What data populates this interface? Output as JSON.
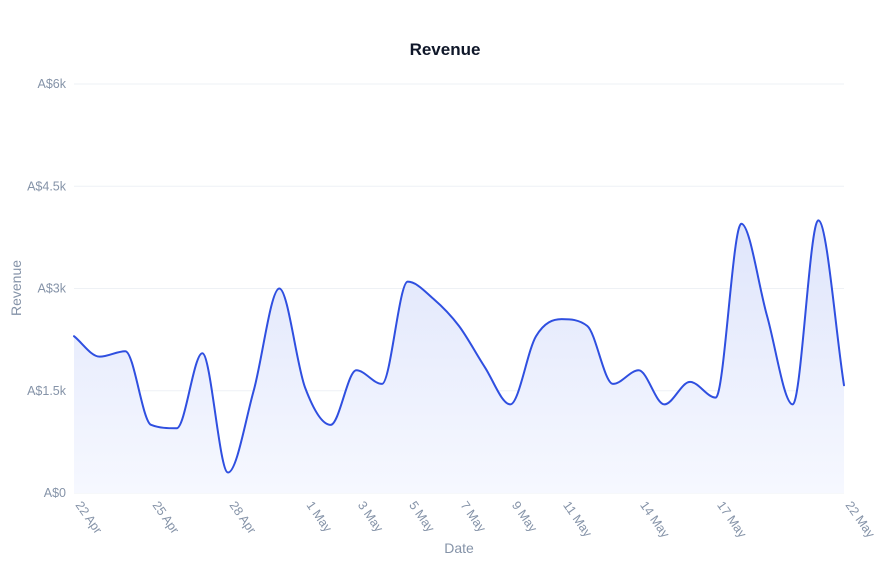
{
  "chart_data": {
    "type": "area",
    "title": "Revenue",
    "xlabel": "Date",
    "ylabel": "Revenue",
    "ylim": [
      0,
      6000
    ],
    "grid": true,
    "colors": {
      "line": "#2f4fe0",
      "fill_top": "#dfe5fb",
      "fill_bottom": "#f6f8ff",
      "grid": "#eef1f5",
      "text": "#8593a8",
      "title": "#0f1729"
    },
    "y_ticks": [
      {
        "value": 0,
        "label": "A$0"
      },
      {
        "value": 1500,
        "label": "A$1.5k"
      },
      {
        "value": 3000,
        "label": "A$3k"
      },
      {
        "value": 4500,
        "label": "A$4.5k"
      },
      {
        "value": 6000,
        "label": "A$6k"
      }
    ],
    "x_ticks": [
      {
        "date": "2024-04-22",
        "label": "22 Apr"
      },
      {
        "date": "2024-04-25",
        "label": "25 Apr"
      },
      {
        "date": "2024-04-28",
        "label": "28 Apr"
      },
      {
        "date": "2024-05-01",
        "label": "1 May"
      },
      {
        "date": "2024-05-03",
        "label": "3 May"
      },
      {
        "date": "2024-05-05",
        "label": "5 May"
      },
      {
        "date": "2024-05-07",
        "label": "7 May"
      },
      {
        "date": "2024-05-09",
        "label": "9 May"
      },
      {
        "date": "2024-05-11",
        "label": "11 May"
      },
      {
        "date": "2024-05-14",
        "label": "14 May"
      },
      {
        "date": "2024-05-17",
        "label": "17 May"
      },
      {
        "date": "2024-05-22",
        "label": "22 May"
      }
    ],
    "series": [
      {
        "x": [
          "2024-04-22",
          "2024-04-23",
          "2024-04-24",
          "2024-04-25",
          "2024-04-26",
          "2024-04-27",
          "2024-04-28",
          "2024-04-29",
          "2024-04-30",
          "2024-05-01",
          "2024-05-02",
          "2024-05-03",
          "2024-05-04",
          "2024-05-05",
          "2024-05-06",
          "2024-05-07",
          "2024-05-08",
          "2024-05-09",
          "2024-05-10",
          "2024-05-11",
          "2024-05-12",
          "2024-05-13",
          "2024-05-14",
          "2024-05-15",
          "2024-05-16",
          "2024-05-17",
          "2024-05-18",
          "2024-05-19",
          "2024-05-20",
          "2024-05-21",
          "2024-05-22"
        ],
        "y": [
          2300,
          2000,
          2080,
          1000,
          950,
          2050,
          300,
          1500,
          3000,
          1550,
          1000,
          1800,
          1600,
          3100,
          2850,
          2450,
          1850,
          1300,
          2300,
          2550,
          2450,
          1600,
          1800,
          1300,
          1630,
          1400,
          3950,
          2600,
          1300,
          4000,
          1580
        ]
      }
    ]
  }
}
